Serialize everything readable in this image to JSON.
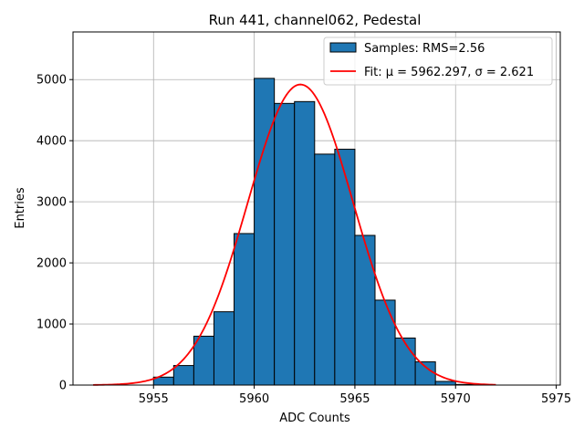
{
  "chart_data": {
    "type": "bar",
    "title": "Run 441, channel062, Pedestal",
    "xlabel": "ADC Counts",
    "ylabel": "Entries",
    "xlim": [
      5951,
      5975.2
    ],
    "ylim": [
      0,
      5780
    ],
    "x_ticks": [
      5955,
      5960,
      5965,
      5970,
      5975
    ],
    "y_ticks": [
      0,
      1000,
      2000,
      3000,
      4000,
      5000
    ],
    "grid": true,
    "legend_position": "upper-right",
    "bin_edges": [
      5955,
      5956,
      5957,
      5958,
      5959,
      5960,
      5961,
      5962,
      5963,
      5964,
      5965,
      5966,
      5967,
      5968,
      5969,
      5970,
      5971
    ],
    "counts": [
      130,
      320,
      800,
      1200,
      2480,
      5020,
      4610,
      4640,
      3780,
      3860,
      2450,
      1390,
      770,
      380,
      60,
      10
    ],
    "series": [
      {
        "name": "Samples: RMS=2.56",
        "type": "histogram",
        "color": "#1f77b4"
      },
      {
        "name": "Fit: μ = 5962.297, σ = 2.621",
        "type": "gaussian",
        "color": "#ff0000",
        "mu": 5962.297,
        "sigma": 2.621,
        "amplitude": 4920,
        "x_range": [
          5952,
          5972
        ]
      }
    ]
  }
}
